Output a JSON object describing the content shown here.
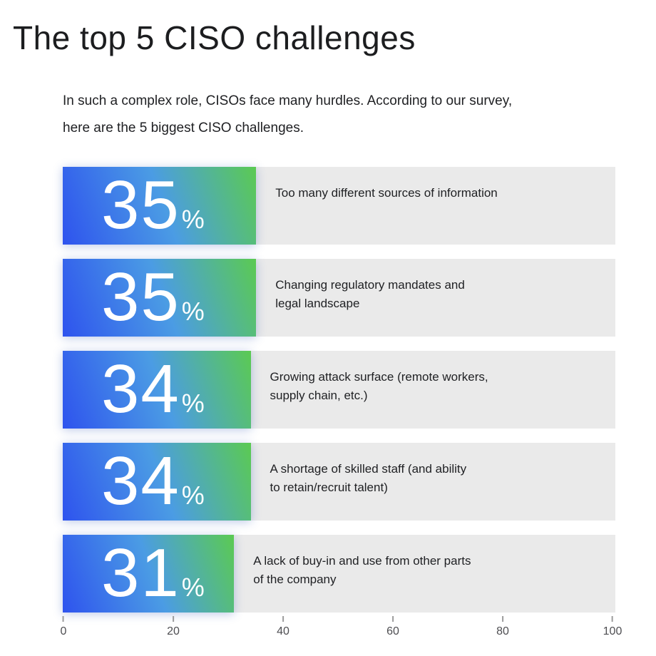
{
  "title": "The top 5 CISO challenges",
  "intro": {
    "line1": "In such a complex role, CISOs face many hurdles. According to our survey,",
    "line2": "here are the 5 biggest CISO challenges."
  },
  "chart": {
    "rows": [
      {
        "value": "35",
        "unit": "%",
        "percent": 35,
        "lines": [
          "Too many different sources of information"
        ]
      },
      {
        "value": "35",
        "unit": "%",
        "percent": 35,
        "lines": [
          "Changing regulatory mandates and",
          "legal landscape"
        ]
      },
      {
        "value": "34",
        "unit": "%",
        "percent": 34,
        "lines": [
          "Growing attack surface (remote workers,",
          "supply chain, etc.)"
        ]
      },
      {
        "value": "34",
        "unit": "%",
        "percent": 34,
        "lines": [
          "A shortage of skilled staff (and ability",
          "to retain/recruit talent)"
        ]
      },
      {
        "value": "31",
        "unit": "%",
        "percent": 31,
        "lines": [
          "A lack of buy-in and use from other parts",
          "of the company"
        ]
      }
    ],
    "axis_ticks": [
      "0",
      "20",
      "40",
      "60",
      "80",
      "100"
    ]
  },
  "colors": {
    "bar_gradient_start": "#2e53ee",
    "bar_gradient_mid": "#4b9ce4",
    "bar_gradient_end": "#5bca52",
    "row_background": "#eaeaea",
    "text": "#1f2023",
    "axis_text": "#4e4e52",
    "tick_mark": "#9c9c9c",
    "value_text": "#ffffff"
  },
  "chart_data": {
    "type": "bar",
    "orientation": "horizontal",
    "title": "The top 5 CISO challenges",
    "subtitle": "In such a complex role, CISOs face many hurdles. According to our survey, here are the 5 biggest CISO challenges.",
    "categories": [
      "Too many different sources of information",
      "Changing regulatory mandates and legal landscape",
      "Growing attack surface (remote workers, supply chain, etc.)",
      "A shortage of skilled staff (and ability to retain/recruit talent)",
      "A lack of buy-in and use from other parts of the company"
    ],
    "values": [
      35,
      35,
      34,
      34,
      31
    ],
    "unit": "%",
    "xlabel": "",
    "ylabel": "",
    "xlim": [
      0,
      100
    ],
    "x_ticks": [
      0,
      20,
      40,
      60,
      80,
      100
    ],
    "grid": false,
    "legend": false,
    "value_labels_position": "inside-bar-left"
  }
}
